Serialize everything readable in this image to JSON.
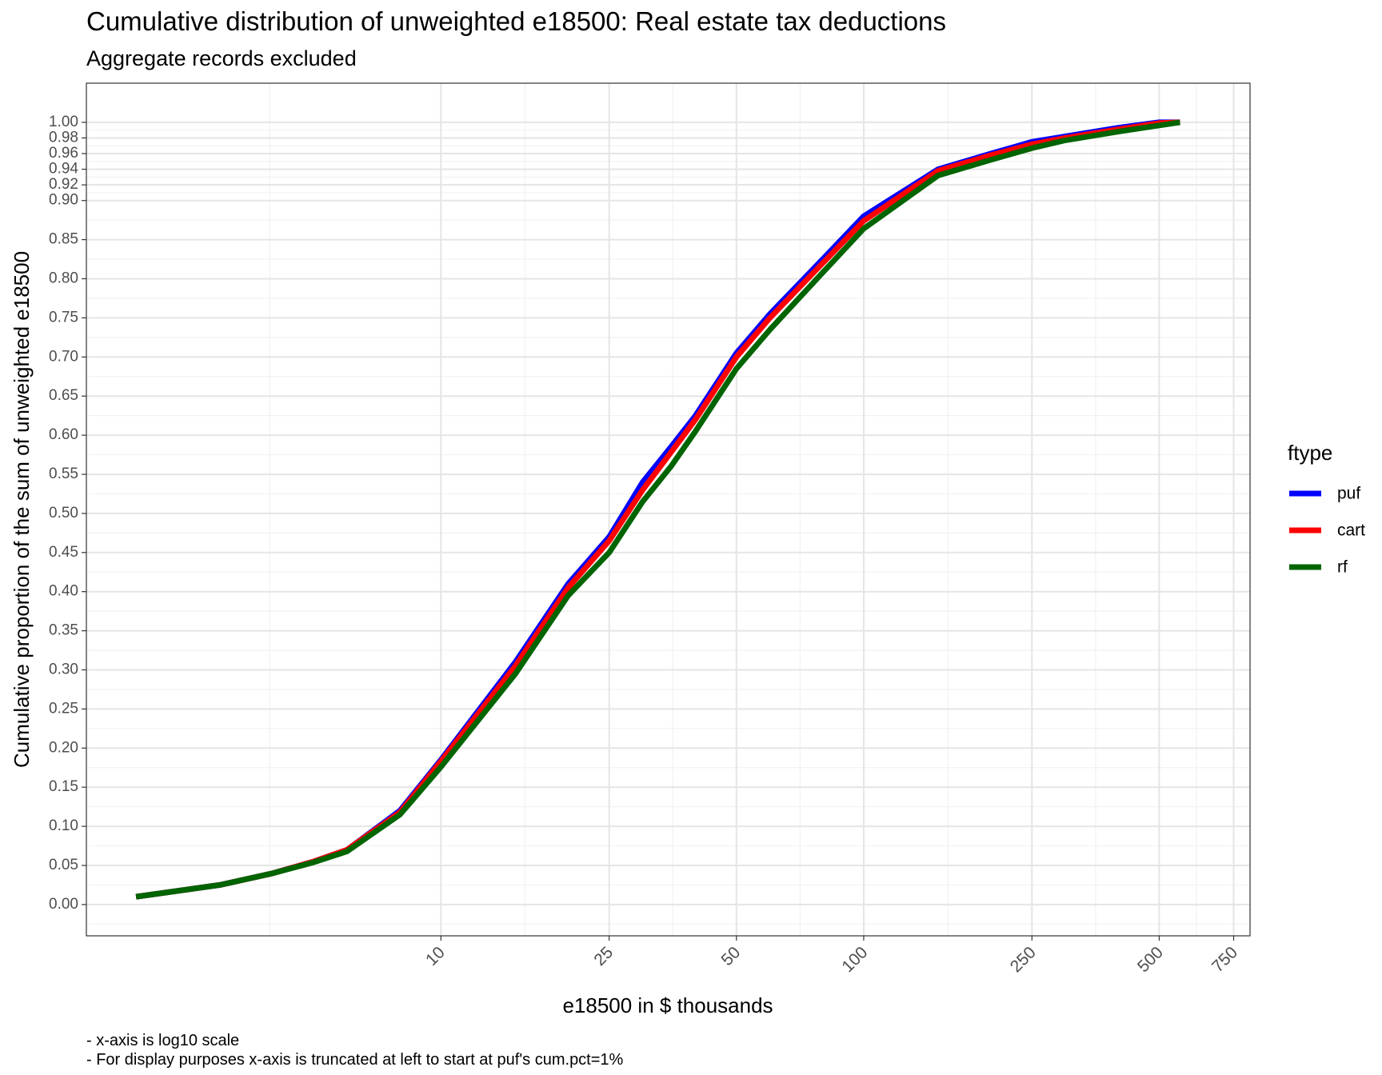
{
  "chart_data": {
    "type": "line",
    "title": "Cumulative distribution of unweighted e18500: Real estate tax deductions",
    "subtitle": "Aggregate records excluded",
    "xlabel": "e18500 in $ thousands",
    "ylabel": "Cumulative proportion of the sum of unweighted e18500",
    "x_scale": "log10",
    "xlim": [
      1.45,
      820
    ],
    "ylim": [
      -0.04,
      1.05
    ],
    "x_ticks": [
      10,
      25,
      50,
      100,
      250,
      500,
      750
    ],
    "x_tick_labels": [
      "10",
      "25",
      "50",
      "100",
      "250",
      "500",
      "750"
    ],
    "y_ticks": [
      0.0,
      0.05,
      0.1,
      0.15,
      0.2,
      0.25,
      0.3,
      0.35,
      0.4,
      0.45,
      0.5,
      0.55,
      0.6,
      0.65,
      0.7,
      0.75,
      0.8,
      0.85,
      0.9,
      0.92,
      0.94,
      0.96,
      0.98,
      1.0
    ],
    "y_tick_labels": [
      "0.00",
      "0.05",
      "0.10",
      "0.15",
      "0.20",
      "0.25",
      "0.30",
      "0.35",
      "0.40",
      "0.45",
      "0.50",
      "0.55",
      "0.60",
      "0.65",
      "0.70",
      "0.75",
      "0.80",
      "0.85",
      "0.90",
      "0.92",
      "0.94",
      "0.96",
      "0.98",
      "1.00"
    ],
    "grid": true,
    "legend": {
      "title": "ftype",
      "position": "right"
    },
    "series": [
      {
        "name": "puf",
        "color": "#0000ff",
        "x": [
          1.9,
          3,
          4,
          5,
          6,
          8,
          10,
          15,
          20,
          25,
          30,
          35,
          40,
          50,
          60,
          80,
          100,
          150,
          200,
          250,
          300,
          400,
          500,
          560
        ],
        "y": [
          0.01,
          0.025,
          0.04,
          0.055,
          0.07,
          0.12,
          0.185,
          0.31,
          0.41,
          0.47,
          0.54,
          0.585,
          0.625,
          0.705,
          0.755,
          0.825,
          0.88,
          0.94,
          0.96,
          0.975,
          0.982,
          0.993,
          1.0,
          1.0
        ]
      },
      {
        "name": "cart",
        "color": "#ff0000",
        "x": [
          1.9,
          3,
          4,
          5,
          6,
          8,
          10,
          15,
          20,
          25,
          30,
          35,
          40,
          50,
          60,
          80,
          100,
          150,
          200,
          250,
          300,
          400,
          500,
          560
        ],
        "y": [
          0.01,
          0.025,
          0.04,
          0.055,
          0.07,
          0.118,
          0.183,
          0.305,
          0.405,
          0.465,
          0.53,
          0.578,
          0.62,
          0.7,
          0.75,
          0.82,
          0.874,
          0.938,
          0.958,
          0.972,
          0.98,
          0.991,
          0.999,
          1.0
        ]
      },
      {
        "name": "rf",
        "color": "#006400",
        "x": [
          1.9,
          3,
          4,
          5,
          6,
          8,
          10,
          15,
          20,
          25,
          30,
          35,
          40,
          50,
          60,
          80,
          100,
          150,
          200,
          250,
          300,
          400,
          500,
          560
        ],
        "y": [
          0.01,
          0.025,
          0.04,
          0.054,
          0.068,
          0.115,
          0.176,
          0.295,
          0.395,
          0.45,
          0.515,
          0.56,
          0.605,
          0.685,
          0.735,
          0.808,
          0.864,
          0.932,
          0.952,
          0.967,
          0.977,
          0.988,
          0.996,
          1.0
        ]
      }
    ]
  },
  "notes": [
    "- x-axis is log10 scale",
    "- For display purposes x-axis is truncated at left to start at puf's cum.pct=1%"
  ]
}
